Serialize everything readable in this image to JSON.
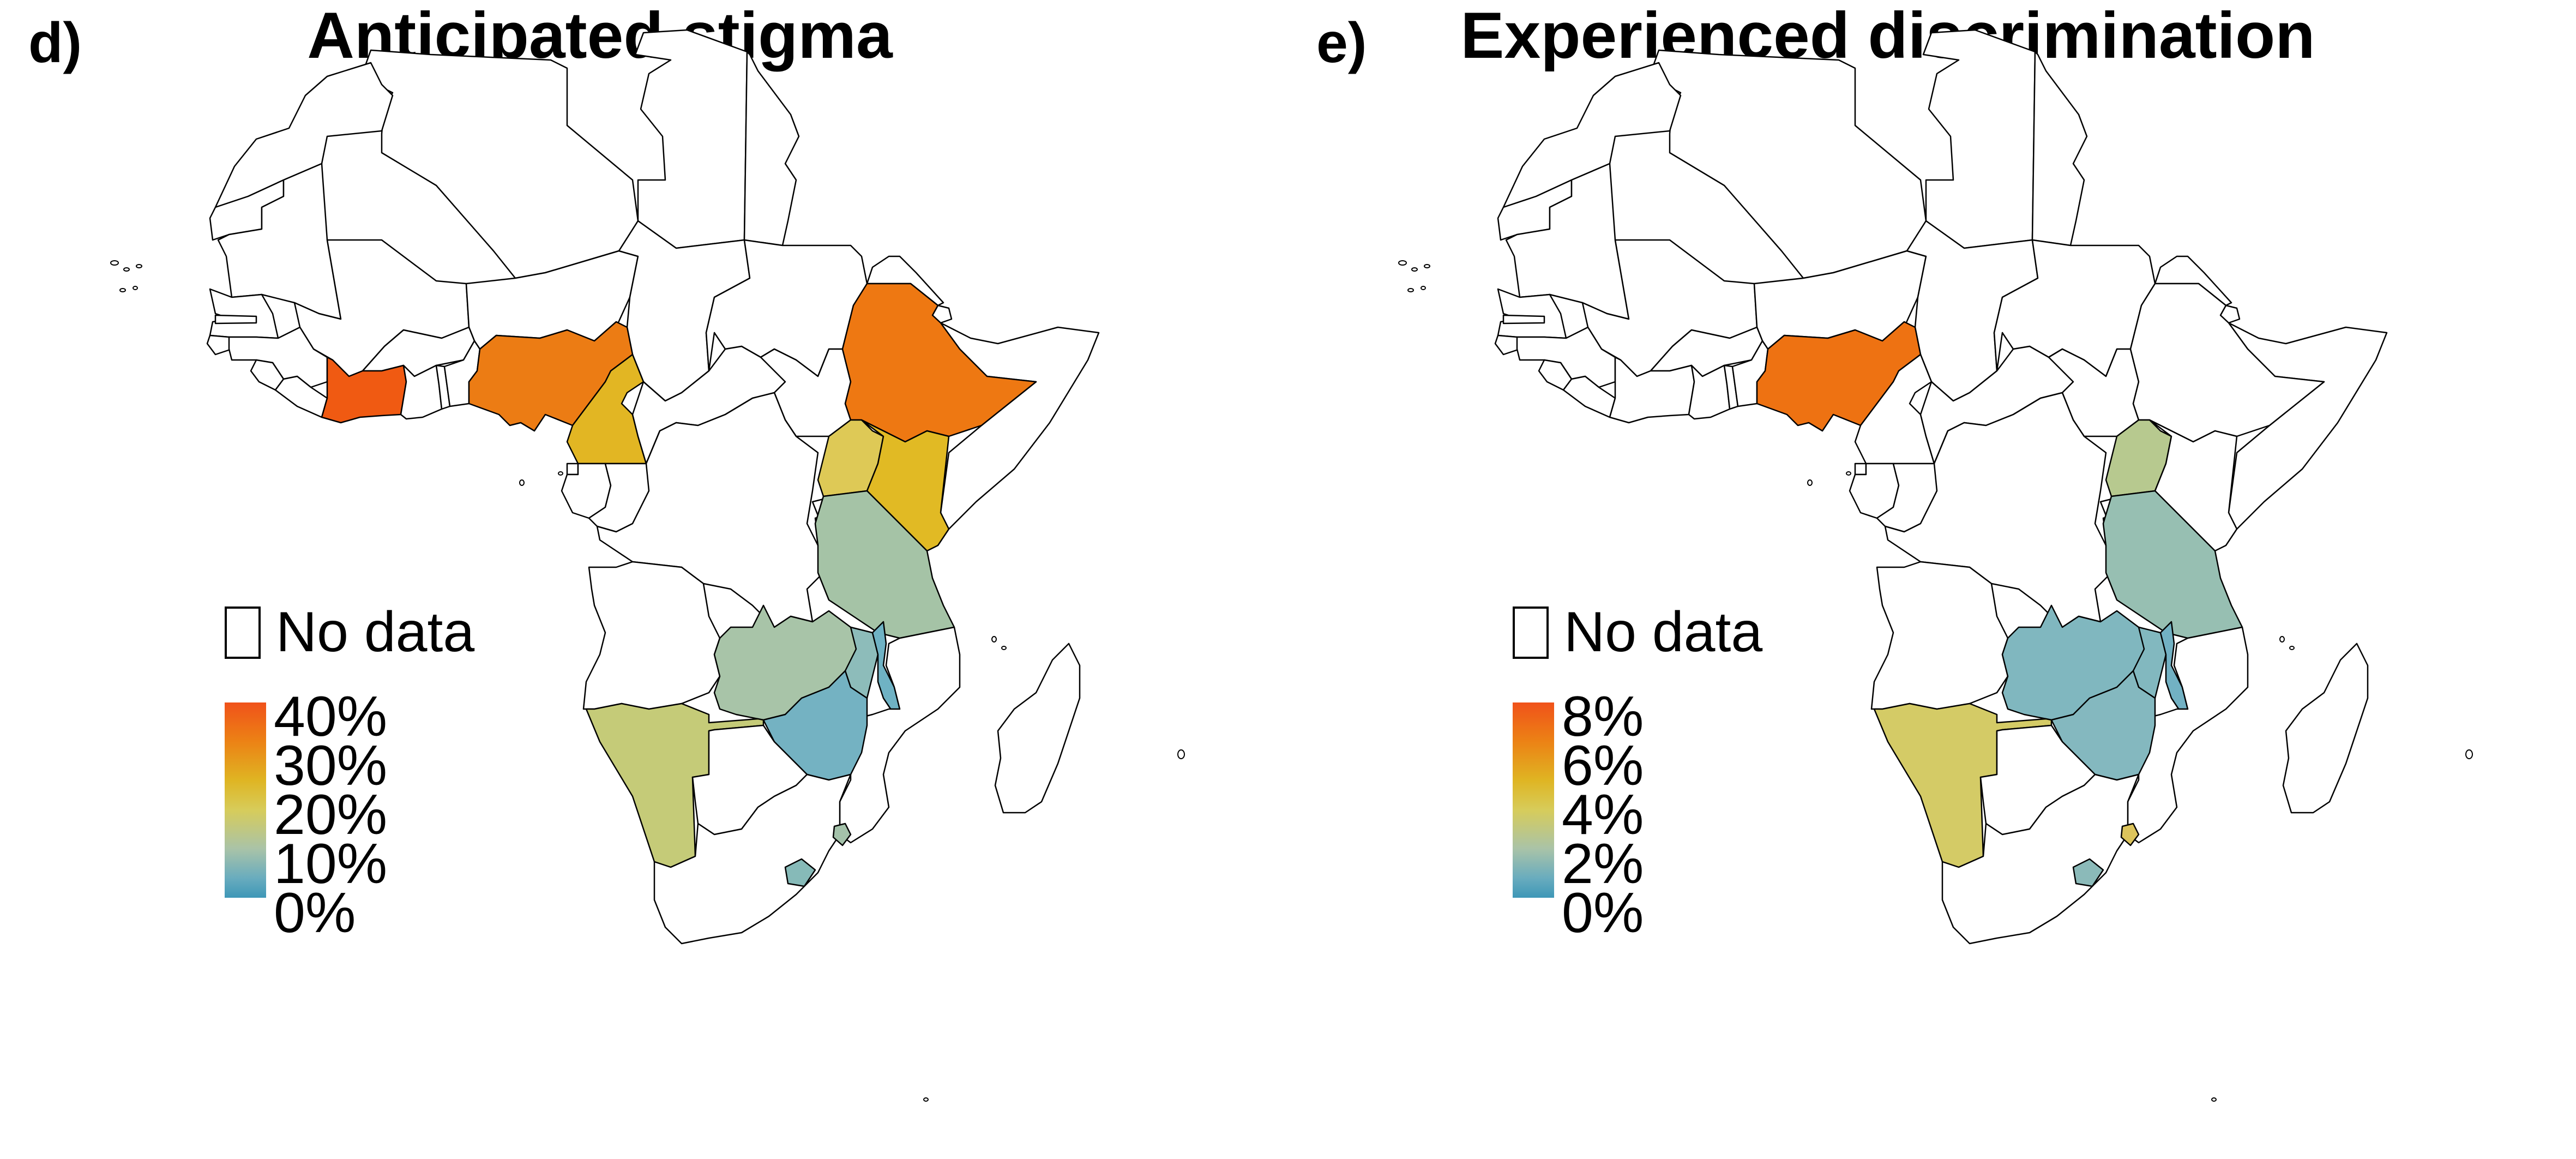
{
  "panels": [
    {
      "letter": "d)",
      "title": "Anticipated stigma",
      "legend": {
        "no_data_label": "No data",
        "ticks": [
          "40%",
          "30%",
          "20%",
          "10%",
          "0%"
        ]
      },
      "region_colors": {
        "cote_divoire": "#f05a12",
        "nigeria": "#ec7c14",
        "ethiopia": "#ee7812",
        "cameroon": "#e2b623",
        "kenya": "#e1ba24",
        "uganda": "#dec956",
        "tanzania": "#a5c3a6",
        "zambia": "#a8c4a8",
        "malawi_moz_north": "#8dbcba",
        "malawi": "#6fb2c4",
        "zimbabwe": "#74b2c2",
        "namibia": "#c5cb78",
        "eswatini": "#a4c2aa",
        "lesotho": "#86bab8"
      }
    },
    {
      "letter": "e)",
      "title": "Experienced discrimination",
      "legend": {
        "no_data_label": "No data",
        "ticks": [
          "8%",
          "6%",
          "4%",
          "2%",
          "0%"
        ]
      },
      "region_colors": {
        "nigeria": "#ee7212",
        "uganda": "#b7c98f",
        "tanzania": "#97bfb2",
        "zambia": "#80b7bf",
        "malawi_moz_north": "#82b8bf",
        "malawi": "#72b1c3",
        "zimbabwe": "#84b8bf",
        "namibia": "#d4cb66",
        "eswatini": "#dcc45c",
        "lesotho": "#8bbab9"
      }
    }
  ]
}
